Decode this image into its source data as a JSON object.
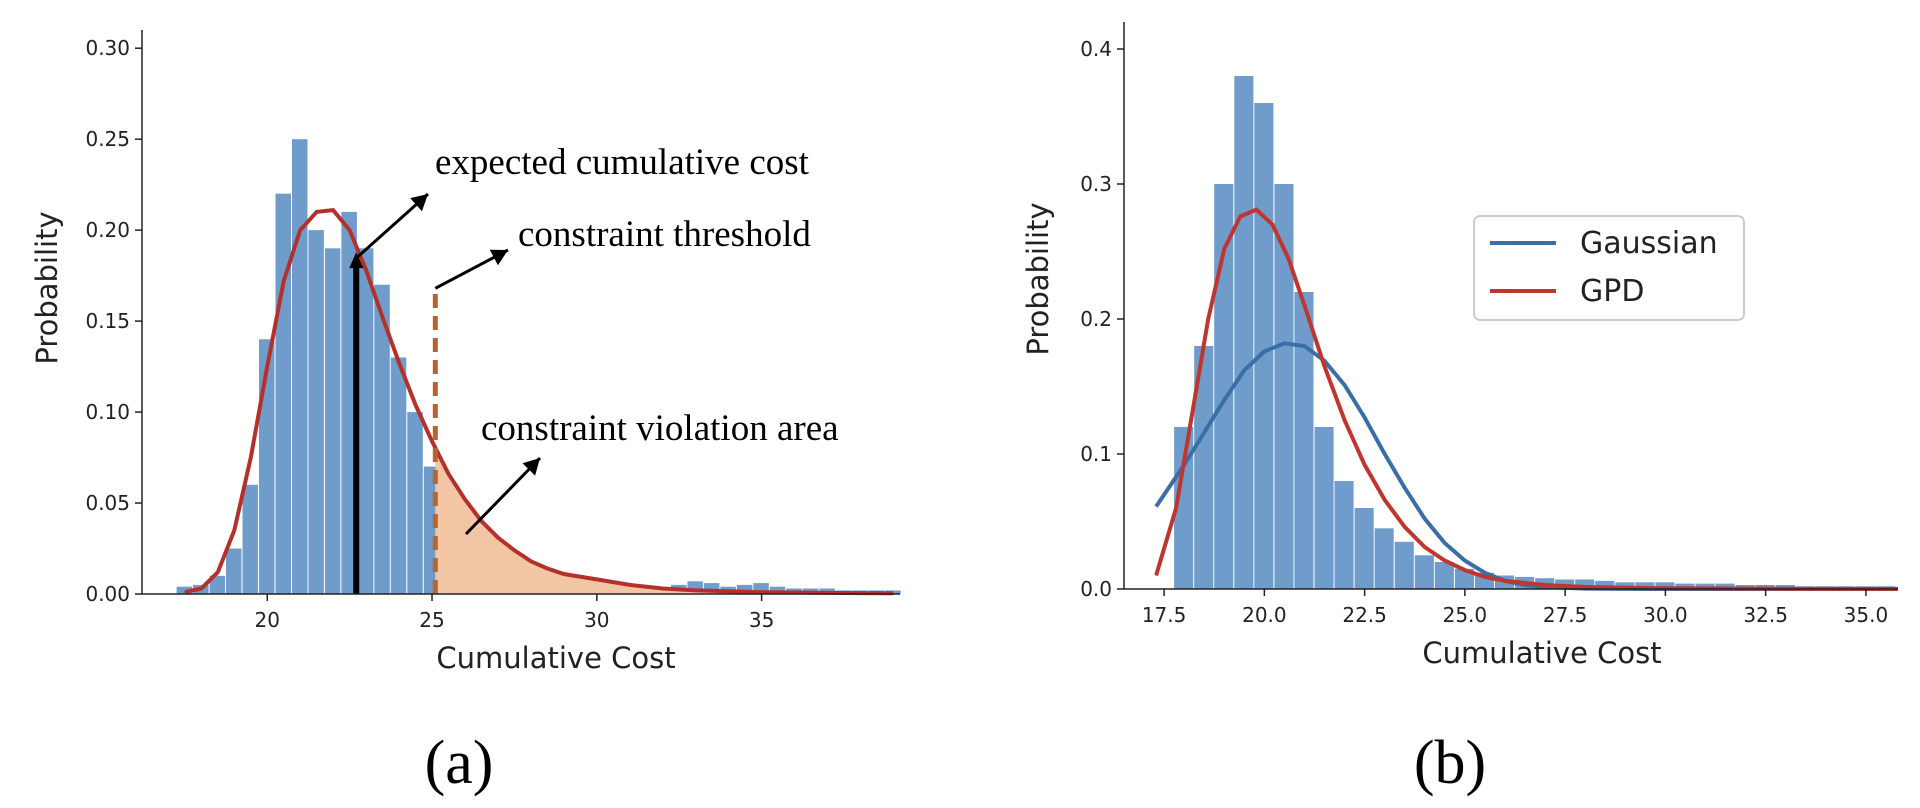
{
  "chart_data": [
    {
      "type": "bar",
      "panel_label": "(a)",
      "xlabel": "Cumulative Cost",
      "ylabel": "Probability",
      "xlim": [
        16.2,
        39.2
      ],
      "ylim": [
        0,
        0.31
      ],
      "xticks": [
        20,
        25,
        30,
        35
      ],
      "xtick_labels": [
        "20",
        "25",
        "30",
        "35"
      ],
      "yticks": [
        0,
        0.05,
        0.1,
        0.15,
        0.2,
        0.25,
        0.3
      ],
      "ytick_labels": [
        "0.00",
        "0.05",
        "0.10",
        "0.15",
        "0.20",
        "0.25",
        "0.30"
      ],
      "grid": false,
      "histogram_color": "#6f9ccb",
      "curve_color": "#b5302a",
      "fill_color": "#f2c5a5",
      "threshold_color": "#b8642f",
      "histogram": {
        "x": [
          17.5,
          18.0,
          18.5,
          19.0,
          19.5,
          20.0,
          20.5,
          21.0,
          21.5,
          22.0,
          22.5,
          23.0,
          23.5,
          24.0,
          24.5,
          25.0,
          25.5,
          26.0,
          26.5,
          27.0,
          27.5,
          28.0,
          28.5,
          29.0,
          29.5,
          30.0,
          30.5,
          31.0,
          31.5,
          32.0,
          32.5,
          33.0,
          33.5,
          34.0,
          34.5,
          35.0,
          35.5,
          36.0,
          36.5,
          37.0,
          37.5,
          38.0,
          38.5,
          39.0
        ],
        "values": [
          0.004,
          0.005,
          0.01,
          0.025,
          0.06,
          0.14,
          0.22,
          0.25,
          0.2,
          0.19,
          0.21,
          0.19,
          0.17,
          0.13,
          0.1,
          0.07,
          0.04,
          0.025,
          0.015,
          0.01,
          0.006,
          0.004,
          0.003,
          0.002,
          0.002,
          0.002,
          0.001,
          0.001,
          0.001,
          0.002,
          0.005,
          0.007,
          0.006,
          0.004,
          0.005,
          0.006,
          0.004,
          0.003,
          0.003,
          0.003,
          0.002,
          0.002,
          0.002,
          0.002
        ]
      },
      "fit_curve": {
        "x": [
          17.5,
          18.0,
          18.5,
          19.0,
          19.5,
          20.0,
          20.5,
          21.0,
          21.5,
          22.0,
          22.5,
          23.0,
          23.5,
          24.0,
          24.5,
          25.0,
          25.5,
          26.0,
          26.5,
          27.0,
          27.5,
          28.0,
          28.5,
          29.0,
          30.0,
          31.0,
          32.0,
          33.0,
          34.0,
          35.0,
          36.0,
          37.0,
          38.0,
          39.0
        ],
        "values": [
          0.001,
          0.003,
          0.012,
          0.035,
          0.075,
          0.125,
          0.172,
          0.2,
          0.21,
          0.211,
          0.2,
          0.178,
          0.152,
          0.127,
          0.104,
          0.084,
          0.066,
          0.052,
          0.04,
          0.031,
          0.024,
          0.018,
          0.014,
          0.011,
          0.008,
          0.005,
          0.003,
          0.002,
          0.0015,
          0.001,
          0.0008,
          0.0006,
          0.0005,
          0.0004
        ]
      },
      "expected_cumulative_cost": 22.7,
      "constraint_threshold": 25.1,
      "annotations": {
        "expected": "expected cumulative cost",
        "threshold": "constraint threshold",
        "violation": "constraint violation area"
      }
    },
    {
      "type": "bar",
      "panel_label": "(b)",
      "xlabel": "Cumulative Cost",
      "ylabel": "Probability",
      "xlim": [
        16.5,
        35.8
      ],
      "ylim": [
        0,
        0.42
      ],
      "xticks": [
        17.5,
        20.0,
        22.5,
        25.0,
        27.5,
        30.0,
        32.5,
        35.0
      ],
      "xtick_labels": [
        "17.5",
        "20.0",
        "22.5",
        "25.0",
        "27.5",
        "30.0",
        "32.5",
        "35.0"
      ],
      "yticks": [
        0,
        0.1,
        0.2,
        0.3,
        0.4
      ],
      "ytick_labels": [
        "0.0",
        "0.1",
        "0.2",
        "0.3",
        "0.4"
      ],
      "grid": false,
      "legend_position": "upper-right",
      "histogram_color": "#6f9ccb",
      "histogram": {
        "x": [
          17.5,
          18.0,
          18.5,
          19.0,
          19.5,
          20.0,
          20.5,
          21.0,
          21.5,
          22.0,
          22.5,
          23.0,
          23.5,
          24.0,
          24.5,
          25.0,
          25.5,
          26.0,
          26.5,
          27.0,
          27.5,
          28.0,
          28.5,
          29.0,
          29.5,
          30.0,
          30.5,
          31.0,
          31.5,
          32.0,
          32.5,
          33.0,
          33.5,
          34.0,
          34.5,
          35.0,
          35.5
        ],
        "values": [
          0.0,
          0.12,
          0.18,
          0.3,
          0.38,
          0.36,
          0.3,
          0.22,
          0.12,
          0.08,
          0.06,
          0.045,
          0.035,
          0.025,
          0.02,
          0.015,
          0.012,
          0.01,
          0.009,
          0.008,
          0.007,
          0.007,
          0.006,
          0.005,
          0.005,
          0.005,
          0.004,
          0.004,
          0.004,
          0.003,
          0.003,
          0.003,
          0.002,
          0.002,
          0.002,
          0.002,
          0.002
        ]
      },
      "series": [
        {
          "name": "Gaussian",
          "color": "#3a6fa6",
          "x": [
            17.3,
            18.0,
            18.5,
            19.0,
            19.5,
            20.0,
            20.5,
            21.0,
            21.5,
            22.0,
            22.5,
            23.0,
            23.5,
            24.0,
            24.5,
            25.0,
            25.5,
            26.0,
            26.5,
            27.0,
            28.0,
            29.0,
            30.0,
            32.0,
            35.8
          ],
          "values": [
            0.061,
            0.092,
            0.116,
            0.14,
            0.162,
            0.176,
            0.182,
            0.18,
            0.169,
            0.151,
            0.127,
            0.1,
            0.075,
            0.052,
            0.034,
            0.021,
            0.012,
            0.006,
            0.003,
            0.0015,
            0.0003,
            0.0001,
            0.0,
            0.0,
            0.0
          ]
        },
        {
          "name": "GPD",
          "color": "#c0362f",
          "x": [
            17.3,
            17.8,
            18.2,
            18.6,
            19.0,
            19.4,
            19.8,
            20.2,
            20.6,
            21.0,
            21.5,
            22.0,
            22.5,
            23.0,
            23.5,
            24.0,
            24.5,
            25.0,
            25.5,
            26.0,
            27.0,
            28.0,
            30.0,
            33.0,
            35.8
          ],
          "values": [
            0.01,
            0.06,
            0.13,
            0.2,
            0.252,
            0.276,
            0.281,
            0.27,
            0.245,
            0.21,
            0.165,
            0.125,
            0.092,
            0.066,
            0.046,
            0.031,
            0.021,
            0.014,
            0.009,
            0.006,
            0.003,
            0.0015,
            0.0005,
            0.0002,
            0.0001
          ]
        }
      ]
    }
  ]
}
